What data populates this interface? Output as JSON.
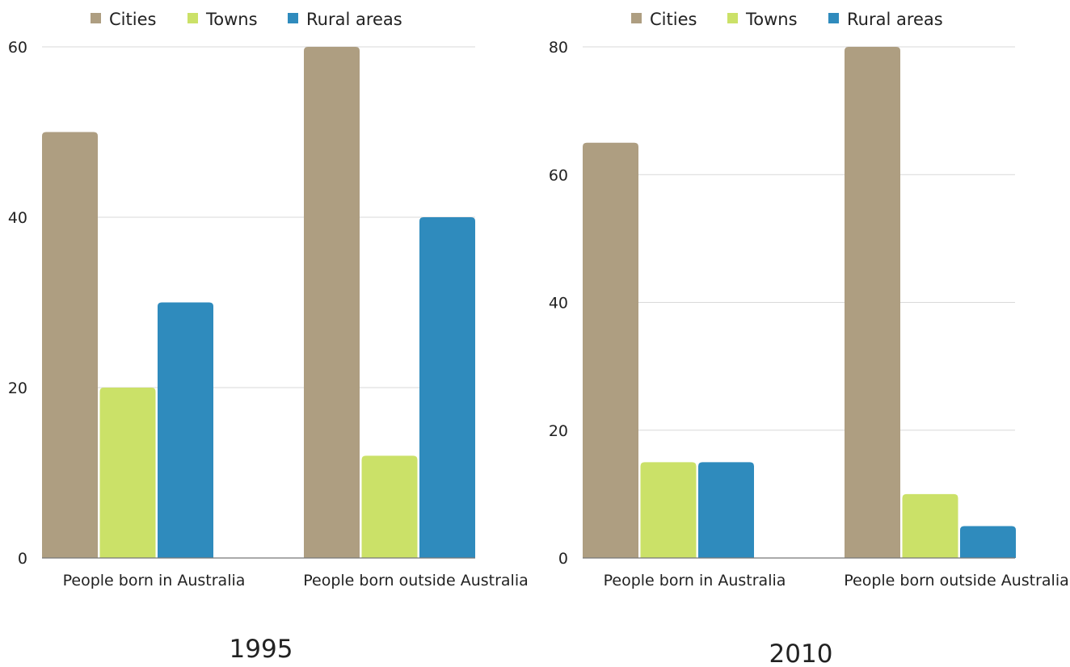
{
  "chart_data": [
    {
      "type": "bar",
      "title": "1995",
      "categories": [
        "People born in Australia",
        "People born outside Australia"
      ],
      "series": [
        {
          "name": "Cities",
          "color": "#ae9e81",
          "values": [
            50,
            60
          ]
        },
        {
          "name": "Towns",
          "color": "#cbe168",
          "values": [
            20,
            12
          ]
        },
        {
          "name": "Rural areas",
          "color": "#2f8bbd",
          "values": [
            30,
            40
          ]
        }
      ],
      "ylim": [
        0,
        60
      ],
      "yticks": [
        0,
        20,
        40,
        60
      ],
      "grid": true,
      "legend": "top"
    },
    {
      "type": "bar",
      "title": "2010",
      "categories": [
        "People born in Australia",
        "People born outside Australia"
      ],
      "series": [
        {
          "name": "Cities",
          "color": "#ae9e81",
          "values": [
            65,
            80
          ]
        },
        {
          "name": "Towns",
          "color": "#cbe168",
          "values": [
            15,
            10
          ]
        },
        {
          "name": "Rural areas",
          "color": "#2f8bbd",
          "values": [
            15,
            5
          ]
        }
      ],
      "ylim": [
        0,
        80
      ],
      "yticks": [
        0,
        20,
        40,
        60,
        80
      ],
      "grid": true,
      "legend": "top"
    }
  ]
}
